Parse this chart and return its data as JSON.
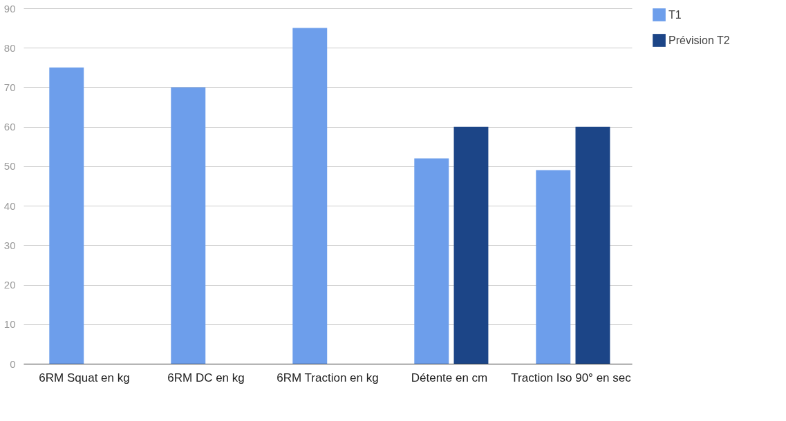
{
  "chart_data": {
    "type": "bar",
    "categories": [
      "6RM Squat en kg",
      "6RM DC en kg",
      "6RM Traction en kg",
      "Détente en cm",
      "Traction Iso 90° en sec"
    ],
    "series": [
      {
        "name": "T1",
        "color": "#6d9eeb",
        "values": [
          75,
          70,
          85,
          52,
          49
        ]
      },
      {
        "name": "Prévision T2",
        "color": "#1c4587",
        "values": [
          null,
          null,
          null,
          60,
          60
        ]
      }
    ],
    "ylim": [
      0,
      90
    ],
    "yticks": [
      0,
      10,
      20,
      30,
      40,
      50,
      60,
      70,
      80,
      90
    ],
    "grid": "y",
    "legend": "top right"
  }
}
